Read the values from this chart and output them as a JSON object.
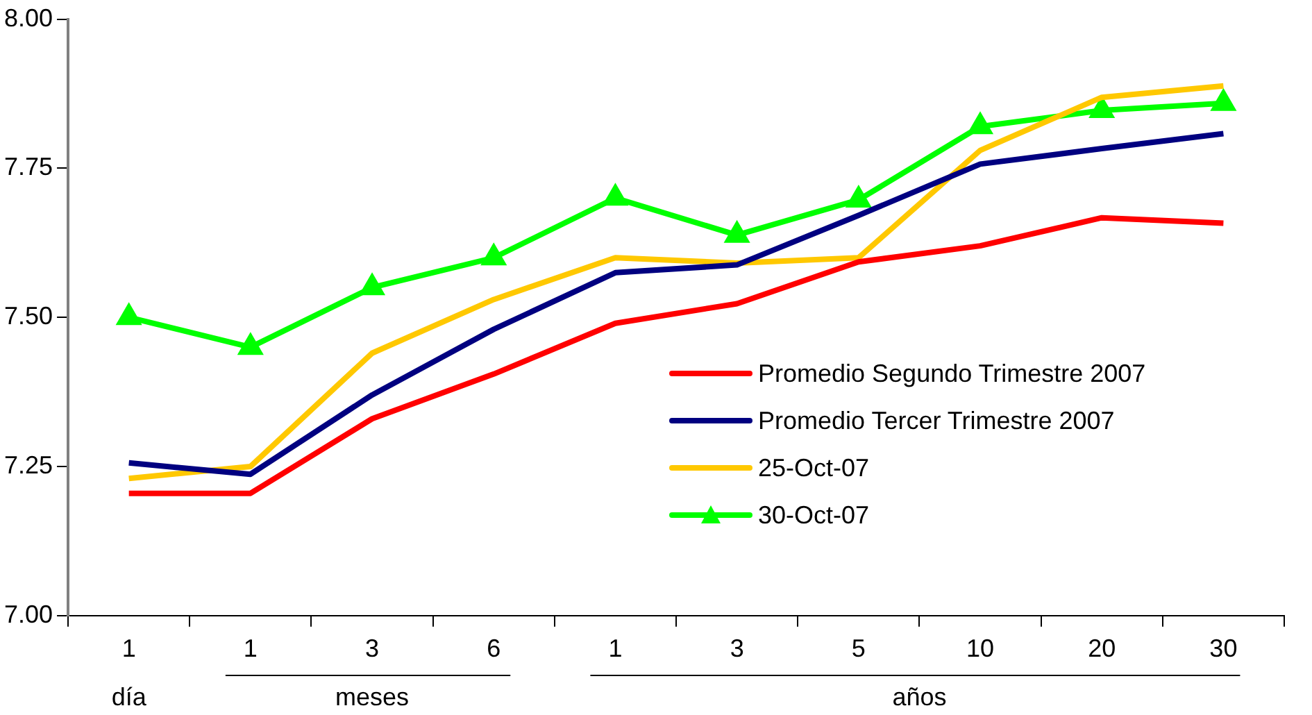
{
  "chart_data": {
    "type": "line",
    "categories": [
      "1",
      "1",
      "3",
      "6",
      "1",
      "3",
      "5",
      "10",
      "20",
      "30"
    ],
    "series": [
      {
        "name": "Promedio Segundo Trimestre 2007",
        "color": "#ff0000",
        "marker": "none",
        "values": [
          7.205,
          7.205,
          7.33,
          7.405,
          7.49,
          7.523,
          7.593,
          7.62,
          7.667,
          7.658
        ]
      },
      {
        "name": "Promedio Tercer Trimestre 2007",
        "color": "#000080",
        "marker": "none",
        "values": [
          7.256,
          7.237,
          7.37,
          7.48,
          7.575,
          7.588,
          7.671,
          7.757,
          7.783,
          7.808
        ]
      },
      {
        "name": "25-Oct-07",
        "color": "#ffc800",
        "marker": "none",
        "values": [
          7.23,
          7.25,
          7.44,
          7.53,
          7.6,
          7.591,
          7.6,
          7.78,
          7.869,
          7.888
        ]
      },
      {
        "name": "30-Oct-07",
        "color": "#00ff00",
        "marker": "triangle",
        "values": [
          7.5,
          7.45,
          7.55,
          7.6,
          7.7,
          7.638,
          7.697,
          7.82,
          7.847,
          7.859
        ]
      }
    ],
    "ylim": [
      7,
      8
    ],
    "yticks": [
      {
        "value": 7,
        "label": "7.00"
      },
      {
        "value": 7.25,
        "label": "7.25"
      },
      {
        "value": 7.5,
        "label": "7.50"
      },
      {
        "value": 7.75,
        "label": "7.75"
      },
      {
        "value": 8,
        "label": "8.00"
      }
    ],
    "annotations": [
      "día",
      "meses",
      "años"
    ],
    "grid": false,
    "legend": "bottom right",
    "line_style": "solid"
  }
}
